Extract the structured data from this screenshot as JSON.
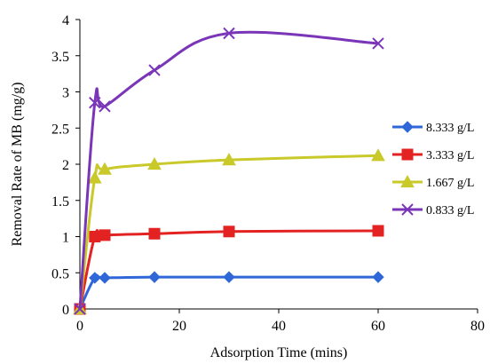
{
  "chart_data": {
    "type": "line",
    "title": "",
    "xlabel": "Adsorption Time (mins)",
    "ylabel": "Removal Rate of MB (mg/g)",
    "xlim": [
      0,
      80
    ],
    "ylim": [
      0,
      4
    ],
    "xticks": [
      "0",
      "20",
      "40",
      "60",
      "80"
    ],
    "yticks": [
      "0",
      "0.5",
      "1",
      "1.5",
      "2",
      "2.5",
      "3",
      "3.5",
      "4"
    ],
    "grid": false,
    "legend_position": "right",
    "series": [
      {
        "name": "8.333 g/L",
        "color": "#2f67d8",
        "marker": "diamond",
        "x": [
          0,
          3,
          5,
          15,
          30,
          60
        ],
        "y": [
          0,
          0.43,
          0.43,
          0.44,
          0.44,
          0.44
        ]
      },
      {
        "name": "3.333 g/L",
        "color": "#e32222",
        "marker": "square",
        "x": [
          0,
          3,
          5,
          15,
          30,
          60
        ],
        "y": [
          0,
          1.0,
          1.02,
          1.04,
          1.07,
          1.08
        ]
      },
      {
        "name": "1.667 g/L",
        "color": "#c9c92a",
        "marker": "triangle",
        "x": [
          0,
          3,
          5,
          15,
          30,
          60
        ],
        "y": [
          0,
          1.81,
          1.93,
          2.0,
          2.06,
          2.12
        ]
      },
      {
        "name": "0.833 g/L",
        "color": "#7a35b8",
        "marker": "x",
        "x": [
          0,
          3,
          5,
          15,
          30,
          60
        ],
        "y": [
          0,
          2.85,
          2.8,
          3.3,
          3.81,
          3.67
        ]
      }
    ]
  }
}
